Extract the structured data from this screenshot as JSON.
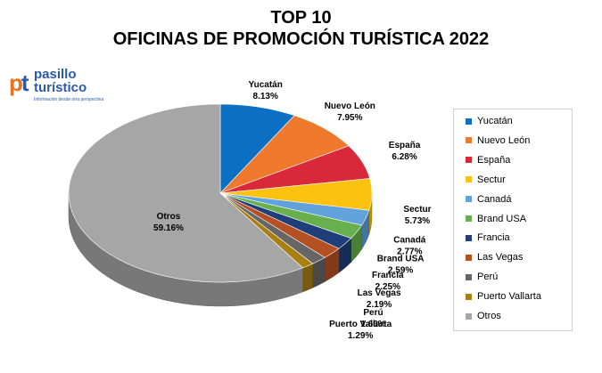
{
  "title_line1": "TOP 10",
  "title_line2": "OFICINAS DE PROMOCIÓN TURÍSTICA 2022",
  "logo": {
    "mark_p": "p",
    "mark_t": "t",
    "name_line1": "pasillo",
    "name_line2": "turístico",
    "tagline": "Información desde otra perspectiva"
  },
  "chart_data": {
    "type": "pie",
    "title": "TOP 10 OFICINAS DE PROMOCIÓN TURÍSTICA 2022",
    "style": "3d",
    "legend_position": "right",
    "slices": [
      {
        "name": "Yucatán",
        "value": 8.13,
        "label": "8.13%",
        "color": "#0b6fc3"
      },
      {
        "name": "Nuevo León",
        "value": 7.95,
        "label": "7.95%",
        "color": "#ef7a2d"
      },
      {
        "name": "España",
        "value": 6.28,
        "label": "6.28%",
        "color": "#d8283a"
      },
      {
        "name": "Sectur",
        "value": 5.73,
        "label": "5.73%",
        "color": "#fbc30f"
      },
      {
        "name": "Canadá",
        "value": 2.77,
        "label": "2.77%",
        "color": "#5fa2dc"
      },
      {
        "name": "Brand USA",
        "value": 2.59,
        "label": "2.59%",
        "color": "#67b04d"
      },
      {
        "name": "Francia",
        "value": 2.25,
        "label": "2.25%",
        "color": "#1f3e7a"
      },
      {
        "name": "Las Vegas",
        "value": 2.19,
        "label": "2.19%",
        "color": "#b45022"
      },
      {
        "name": "Perú",
        "value": 1.66,
        "label": "1.66%",
        "color": "#666666"
      },
      {
        "name": "Puerto Vallarta",
        "value": 1.29,
        "label": "1.29%",
        "color": "#a77f12"
      },
      {
        "name": "Otros",
        "value": 59.16,
        "label": "59.16%",
        "color": "#a6a6a6"
      }
    ]
  }
}
